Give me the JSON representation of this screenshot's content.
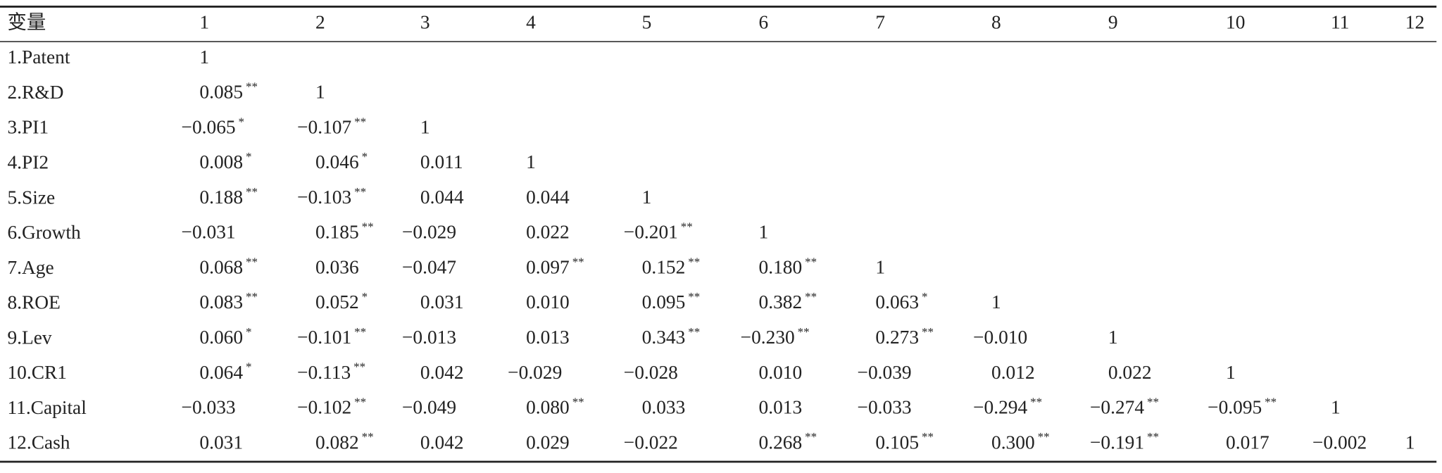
{
  "table": {
    "header": [
      "变量",
      "1",
      "2",
      "3",
      "4",
      "5",
      "6",
      "7",
      "8",
      "9",
      "10",
      "11",
      "12"
    ],
    "rows": [
      {
        "label": "1.Patent",
        "cells": [
          "1"
        ]
      },
      {
        "label": "2.R&D",
        "cells": [
          {
            "value": "0.085",
            "sig": "**"
          },
          "1"
        ]
      },
      {
        "label": "3.PI1",
        "cells": [
          {
            "value": "−0.065",
            "sig": "*"
          },
          {
            "value": "−0.107",
            "sig": "**"
          },
          "1"
        ]
      },
      {
        "label": "4.PI2",
        "cells": [
          {
            "value": "0.008",
            "sig": "*"
          },
          {
            "value": "0.046",
            "sig": "*"
          },
          "0.011",
          "1"
        ]
      },
      {
        "label": "5.Size",
        "cells": [
          {
            "value": "0.188",
            "sig": "**"
          },
          {
            "value": "−0.103",
            "sig": "**"
          },
          "0.044",
          "0.044",
          "1"
        ]
      },
      {
        "label": "6.Growth",
        "cells": [
          "−0.031",
          {
            "value": "0.185",
            "sig": "**"
          },
          "−0.029",
          "0.022",
          {
            "value": "−0.201",
            "sig": "**"
          },
          "1"
        ]
      },
      {
        "label": "7.Age",
        "cells": [
          {
            "value": "0.068",
            "sig": "**"
          },
          "0.036",
          "−0.047",
          {
            "value": "0.097",
            "sig": "**"
          },
          {
            "value": "0.152",
            "sig": "**"
          },
          {
            "value": "0.180",
            "sig": "**"
          },
          "1"
        ]
      },
      {
        "label": "8.ROE",
        "cells": [
          {
            "value": "0.083",
            "sig": "**"
          },
          {
            "value": "0.052",
            "sig": "*"
          },
          "0.031",
          "0.010",
          {
            "value": "0.095",
            "sig": "**"
          },
          {
            "value": "0.382",
            "sig": "**"
          },
          {
            "value": "0.063",
            "sig": "*"
          },
          "1"
        ]
      },
      {
        "label": "9.Lev",
        "cells": [
          {
            "value": "0.060",
            "sig": "*"
          },
          {
            "value": "−0.101",
            "sig": "**"
          },
          "−0.013",
          "0.013",
          {
            "value": "0.343",
            "sig": "**"
          },
          {
            "value": "−0.230",
            "sig": "**"
          },
          {
            "value": "0.273",
            "sig": "**"
          },
          "−0.010",
          "1"
        ]
      },
      {
        "label": "10.CR1",
        "cells": [
          {
            "value": "0.064",
            "sig": "*"
          },
          {
            "value": "−0.113",
            "sig": "**"
          },
          "0.042",
          "−0.029",
          "−0.028",
          "0.010",
          "−0.039",
          "0.012",
          "0.022",
          "1"
        ]
      },
      {
        "label": "11.Capital",
        "cells": [
          "−0.033",
          {
            "value": "−0.102",
            "sig": "**"
          },
          "−0.049",
          {
            "value": "0.080",
            "sig": "**"
          },
          "0.033",
          "0.013",
          "−0.033",
          {
            "value": "−0.294",
            "sig": "**"
          },
          {
            "value": "−0.274",
            "sig": "**"
          },
          {
            "value": "−0.095",
            "sig": "**"
          },
          "1"
        ]
      },
      {
        "label": "12.Cash",
        "cells": [
          "0.031",
          {
            "value": "0.082",
            "sig": "**"
          },
          "0.042",
          "0.029",
          "−0.022",
          {
            "value": "0.268",
            "sig": "**"
          },
          {
            "value": "0.105",
            "sig": "**"
          },
          {
            "value": "0.300",
            "sig": "**"
          },
          {
            "value": "−0.191",
            "sig": "**"
          },
          "0.017",
          "−0.002",
          "1"
        ]
      }
    ]
  }
}
